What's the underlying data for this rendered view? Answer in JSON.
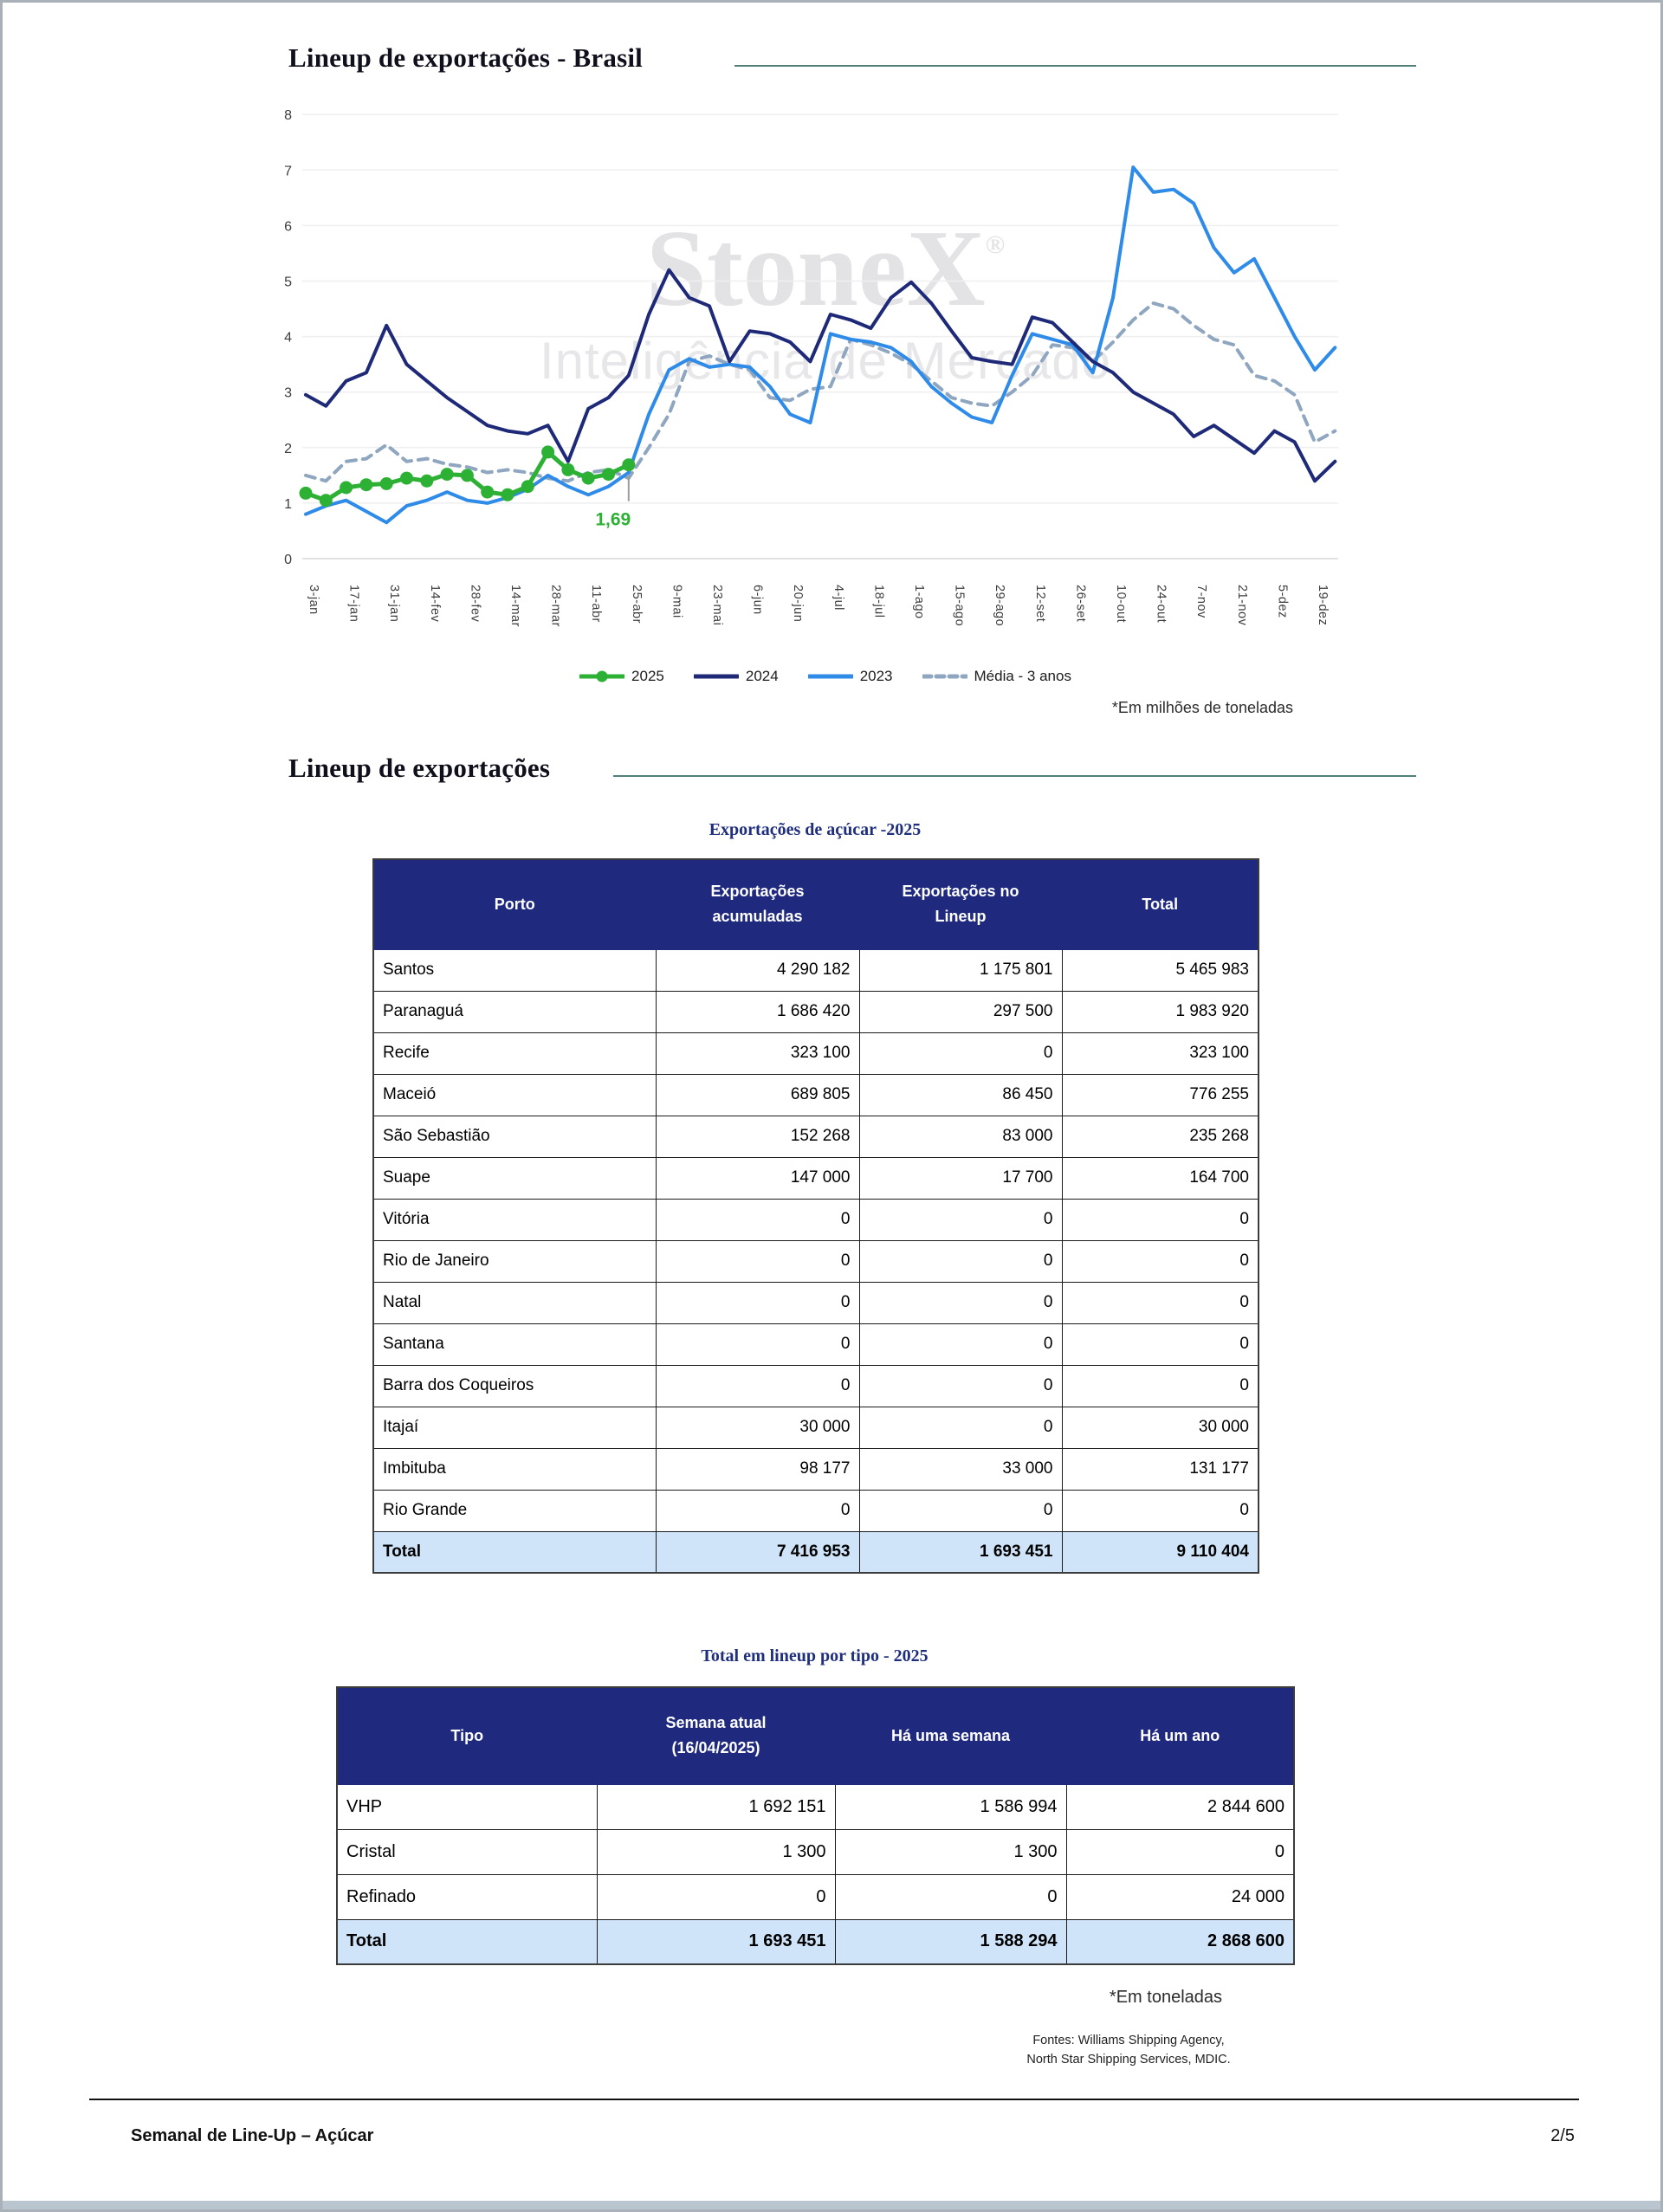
{
  "header": {
    "title": "Lineup de exportações - Brasil"
  },
  "section2": {
    "title": "Lineup de exportações"
  },
  "watermark": {
    "line1": "StoneX",
    "reg": "®",
    "line2": "Inteligência de Mercado"
  },
  "chart_note": "*Em milhões de toneladas",
  "chart_data": {
    "type": "line",
    "title": "Lineup de exportações - Brasil",
    "ylabel": "milhões de toneladas",
    "ylim": [
      0,
      8
    ],
    "y_ticks": [
      0,
      1,
      2,
      3,
      4,
      5,
      6,
      7,
      8
    ],
    "grid": true,
    "legend_position": "bottom",
    "x_resolution": "weekly, labels every 2 weeks",
    "x_tick_labels": [
      "3-jan",
      "17-jan",
      "31-jan",
      "14-fev",
      "28-fev",
      "14-mar",
      "28-mar",
      "11-abr",
      "25-abr",
      "9-mai",
      "23-mai",
      "6-jun",
      "20-jun",
      "4-jul",
      "18-jul",
      "1-ago",
      "15-ago",
      "29-ago",
      "12-set",
      "26-set",
      "10-out",
      "24-out",
      "7-nov",
      "21-nov",
      "5-dez",
      "19-dez"
    ],
    "series": [
      {
        "name": "2025",
        "color": "#2db135",
        "style": "solid-markers",
        "values": [
          1.18,
          1.05,
          1.28,
          1.33,
          1.35,
          1.45,
          1.4,
          1.52,
          1.5,
          1.2,
          1.15,
          1.3,
          1.92,
          1.6,
          1.45,
          1.52,
          1.69
        ]
      },
      {
        "name": "2024",
        "color": "#1e2a78",
        "style": "solid",
        "values": [
          2.95,
          2.75,
          3.2,
          3.35,
          4.2,
          3.5,
          3.2,
          2.9,
          2.65,
          2.4,
          2.3,
          2.25,
          2.4,
          1.75,
          2.7,
          2.9,
          3.3,
          4.4,
          5.2,
          4.7,
          4.55,
          3.55,
          4.1,
          4.05,
          3.9,
          3.55,
          4.4,
          4.3,
          4.15,
          4.7,
          4.98,
          4.6,
          4.1,
          3.62,
          3.55,
          3.5,
          4.35,
          4.25,
          3.9,
          3.55,
          3.35,
          3.0,
          2.8,
          2.6,
          2.2,
          2.4,
          2.15,
          1.9,
          2.3,
          2.1,
          1.4,
          1.75
        ]
      },
      {
        "name": "2023",
        "color": "#2f8be8",
        "style": "solid",
        "values": [
          0.8,
          0.95,
          1.05,
          0.85,
          0.65,
          0.95,
          1.05,
          1.2,
          1.05,
          1.0,
          1.1,
          1.25,
          1.5,
          1.3,
          1.15,
          1.3,
          1.55,
          2.6,
          3.4,
          3.6,
          3.45,
          3.5,
          3.45,
          3.1,
          2.6,
          2.45,
          4.05,
          3.95,
          3.9,
          3.8,
          3.55,
          3.1,
          2.8,
          2.55,
          2.45,
          3.3,
          4.05,
          3.95,
          3.85,
          3.35,
          4.7,
          7.05,
          6.6,
          6.65,
          6.4,
          5.6,
          5.15,
          5.4,
          4.7,
          4.0,
          3.4,
          3.8
        ]
      },
      {
        "name": "Média - 3 anos",
        "color": "#8fa6c0",
        "style": "dashed",
        "values": [
          1.5,
          1.4,
          1.75,
          1.8,
          2.05,
          1.75,
          1.8,
          1.7,
          1.65,
          1.55,
          1.6,
          1.55,
          1.45,
          1.4,
          1.55,
          1.6,
          1.45,
          2.0,
          2.6,
          3.55,
          3.65,
          3.5,
          3.4,
          2.9,
          2.85,
          3.05,
          3.1,
          3.95,
          3.85,
          3.7,
          3.5,
          3.2,
          2.9,
          2.8,
          2.75,
          3.0,
          3.3,
          3.85,
          3.8,
          3.55,
          3.9,
          4.3,
          4.6,
          4.5,
          4.2,
          3.95,
          3.85,
          3.3,
          3.2,
          2.95,
          2.1,
          2.3
        ]
      }
    ],
    "annotation": {
      "series": "2025",
      "text": "1,69"
    }
  },
  "port_table": {
    "title": "Exportações de açúcar -2025",
    "headers": [
      [
        "Porto"
      ],
      [
        "Exportações",
        "acumuladas"
      ],
      [
        "Exportações no",
        "Lineup"
      ],
      [
        "Total"
      ]
    ],
    "rows": [
      [
        "Santos",
        "4 290 182",
        "1 175 801",
        "5 465 983"
      ],
      [
        "Paranaguá",
        "1 686 420",
        "297 500",
        "1 983 920"
      ],
      [
        "Recife",
        "323 100",
        "0",
        "323 100"
      ],
      [
        "Maceió",
        "689 805",
        "86 450",
        "776 255"
      ],
      [
        "São Sebastião",
        "152 268",
        "83 000",
        "235 268"
      ],
      [
        "Suape",
        "147 000",
        "17 700",
        "164 700"
      ],
      [
        "Vitória",
        "0",
        "0",
        "0"
      ],
      [
        "Rio de Janeiro",
        "0",
        "0",
        "0"
      ],
      [
        "Natal",
        "0",
        "0",
        "0"
      ],
      [
        "Santana",
        "0",
        "0",
        "0"
      ],
      [
        "Barra dos Coqueiros",
        "0",
        "0",
        "0"
      ],
      [
        "Itajaí",
        "30 000",
        "0",
        "30 000"
      ],
      [
        "Imbituba",
        "98 177",
        "33 000",
        "131 177"
      ],
      [
        "Rio Grande",
        "0",
        "0",
        "0"
      ]
    ],
    "total": [
      "Total",
      "7 416 953",
      "1 693 451",
      "9 110 404"
    ]
  },
  "type_table": {
    "title": "Total em lineup por tipo - 2025",
    "headers": [
      [
        "Tipo"
      ],
      [
        "Semana atual",
        "(16/04/2025)"
      ],
      [
        "Há uma semana"
      ],
      [
        "Há um ano"
      ]
    ],
    "rows": [
      [
        "VHP",
        "1 692 151",
        "1 586 994",
        "2 844 600"
      ],
      [
        "Cristal",
        "1 300",
        "1 300",
        "0"
      ],
      [
        "Refinado",
        "0",
        "0",
        "24 000"
      ]
    ],
    "total": [
      "Total",
      "1 693 451",
      "1 588 294",
      "2 868 600"
    ]
  },
  "type_note": "*Em toneladas",
  "sources": {
    "line1": "Fontes: Williams Shipping Agency,",
    "line2": "North Star Shipping Services, MDIC."
  },
  "footer": {
    "left": "Semanal de Line-Up – Açúcar",
    "page": "2/5"
  }
}
